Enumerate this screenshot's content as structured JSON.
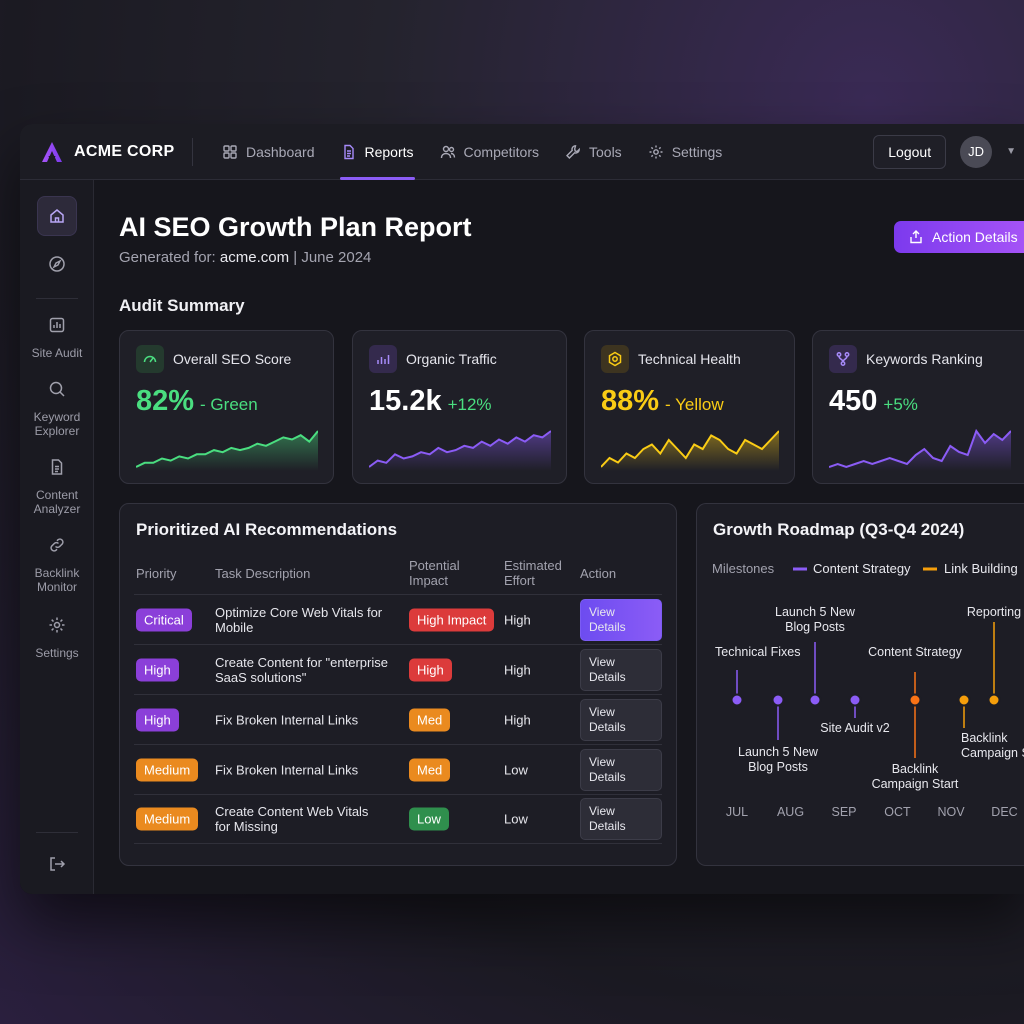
{
  "brand": {
    "name": "ACME CORP"
  },
  "nav": {
    "items": [
      {
        "label": "Dashboard",
        "icon": "grid-icon"
      },
      {
        "label": "Reports",
        "icon": "document-icon",
        "active": true
      },
      {
        "label": "Competitors",
        "icon": "users-icon"
      },
      {
        "label": "Tools",
        "icon": "wrench-icon"
      },
      {
        "label": "Settings",
        "icon": "gear-icon"
      }
    ]
  },
  "header": {
    "logout_label": "Logout",
    "avatar_initials": "JD"
  },
  "sidebar": {
    "items": [
      {
        "label": "",
        "icon": "home-icon"
      },
      {
        "label": "",
        "icon": "compass-icon"
      },
      {
        "label": "Site Audit",
        "icon": "chart-icon"
      },
      {
        "label": "Keyword Explorer",
        "icon": "search-icon"
      },
      {
        "label": "Content Analyzer",
        "icon": "document-icon"
      },
      {
        "label": "Backlink Monitor",
        "icon": "link-icon"
      },
      {
        "label": "Settings",
        "icon": "gear-icon"
      },
      {
        "label": "",
        "icon": "logout-icon"
      }
    ]
  },
  "page": {
    "title": "AI SEO Growth Plan Report",
    "sub_prefix": "Generated for:",
    "sub_domain": "acme.com",
    "sub_suffix": "| June 2024",
    "action_label": "Action Details"
  },
  "audit": {
    "title": "Audit Summary",
    "cards": [
      {
        "title": "Overall SEO Score",
        "value": "82%",
        "delta": "- Green",
        "color": "#4ade80",
        "delta_color": "#4ade80",
        "values": [
          3,
          5,
          5,
          7,
          6,
          8,
          7,
          9,
          9,
          11,
          10,
          12,
          11,
          12,
          14,
          13,
          15,
          17,
          16,
          18,
          15,
          20
        ]
      },
      {
        "title": "Organic Traffic",
        "value": "15.2k",
        "delta": "+12%",
        "color": "#8b5cf6",
        "delta_color": "#4ade80",
        "values": [
          3,
          6,
          5,
          9,
          7,
          8,
          10,
          9,
          12,
          10,
          11,
          13,
          12,
          15,
          13,
          16,
          14,
          17,
          15,
          18,
          17,
          20
        ]
      },
      {
        "title": "Technical Health",
        "value": "88%",
        "delta": "- Yellow",
        "color": "#facc15",
        "delta_color": "#facc15",
        "values": [
          8,
          10,
          9,
          11,
          10,
          12,
          13,
          11,
          14,
          12,
          10,
          13,
          12,
          15,
          14,
          12,
          11,
          14,
          13,
          12,
          14,
          16
        ]
      },
      {
        "title": "Keywords Ranking",
        "value": "450",
        "delta": "+5%",
        "color": "#8b5cf6",
        "delta_color": "#4ade80",
        "values": [
          2,
          3,
          2,
          3,
          4,
          3,
          4,
          5,
          4,
          3,
          6,
          8,
          5,
          4,
          9,
          7,
          6,
          14,
          10,
          13,
          11,
          14
        ]
      }
    ]
  },
  "recommendations": {
    "title": "Prioritized AI Recommendations",
    "headers": {
      "priority": "Priority",
      "task": "Task Description",
      "impact_1": "Potential",
      "impact_2": "Impact",
      "effort_1": "Estimated",
      "effort_2": "Effort",
      "action": "Action"
    },
    "rows": [
      {
        "priority": "Critical",
        "task_1": "Optimize Core Web Vitals for",
        "task_2": "Mobile",
        "impact": "High Impact",
        "effort": "High",
        "action": "View Details"
      },
      {
        "priority": "High",
        "task_1": "Create Content for \"enterprise",
        "task_2": "SaaS solutions\"",
        "impact": "High",
        "effort": "High",
        "action": "View Details"
      },
      {
        "priority": "High",
        "task_1": "Fix Broken Internal Links",
        "task_2": "",
        "impact": "Med",
        "effort": "High",
        "action": "View Details"
      },
      {
        "priority": "Medium",
        "task_1": "Fix Broken Internal Links",
        "task_2": "",
        "impact": "Med",
        "effort": "Low",
        "action": "View Details"
      },
      {
        "priority": "Medium",
        "task_1": "Create Content Web Vitals",
        "task_2": "for Missing",
        "impact": "Low",
        "effort": "Low",
        "action": "View Details"
      }
    ]
  },
  "roadmap": {
    "title": "Growth Roadmap (Q3-Q4 2024)",
    "legend_label": "Milestones",
    "legend": [
      {
        "name": "Content Strategy",
        "color": "#8b5cf6"
      },
      {
        "name": "Link Building",
        "color": "#f59e0b"
      }
    ],
    "months": [
      "JUL",
      "AUG",
      "SEP",
      "OCT",
      "NOV",
      "DEC"
    ],
    "milestones": [
      {
        "label_1": "Technical Fixes",
        "label_2": "",
        "color": "#8b5cf6"
      },
      {
        "label_1": "Launch 5 New",
        "label_2": "Blog Posts",
        "color": "#8b5cf6"
      },
      {
        "label_1": "Launch 5 New",
        "label_2": "Blog Posts",
        "color": "#8b5cf6"
      },
      {
        "label_1": "Site Audit v2",
        "label_2": "",
        "color": "#8b5cf6"
      },
      {
        "label_1": "Content Strategy",
        "label_2": "",
        "color": "#f97316"
      },
      {
        "label_1": "Backlink",
        "label_2": "Campaign Start",
        "color": "#f97316"
      },
      {
        "label_1": "Backlink",
        "label_2": "Campaign S",
        "color": "#f59e0b"
      },
      {
        "label_1": "Reporting",
        "label_2": "",
        "color": "#f59e0b"
      }
    ]
  }
}
